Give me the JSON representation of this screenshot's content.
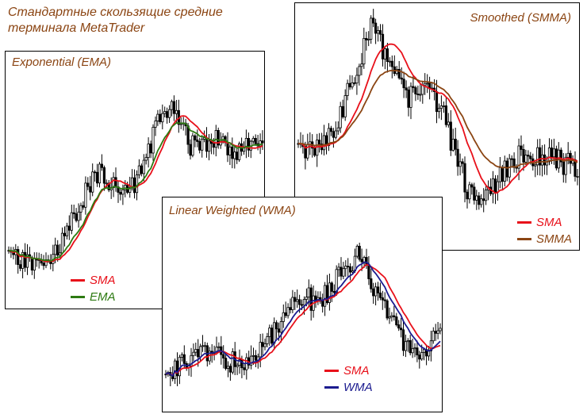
{
  "caption_line1": "Стандартные скользящие средние",
  "caption_line2": "терминала MetaTrader",
  "chart_data": [
    {
      "type": "candlestick",
      "title": "Exponential (EMA)",
      "series": [
        {
          "name": "SMA",
          "color": "#e8101a"
        },
        {
          "name": "EMA",
          "color": "#2d7a12"
        }
      ],
      "legend_position": "bottom-center",
      "grid": false
    },
    {
      "type": "candlestick",
      "title": "Smoothed (SMMA)",
      "series": [
        {
          "name": "SMA",
          "color": "#e8101a"
        },
        {
          "name": "SMMA",
          "color": "#8b4513"
        }
      ],
      "legend_position": "bottom-right",
      "grid": false
    },
    {
      "type": "candlestick",
      "title": "Linear Weighted (WMA)",
      "series": [
        {
          "name": "SMA",
          "color": "#e8101a"
        },
        {
          "name": "WMA",
          "color": "#1b1b8f"
        }
      ],
      "legend_position": "bottom-center",
      "grid": false
    }
  ]
}
